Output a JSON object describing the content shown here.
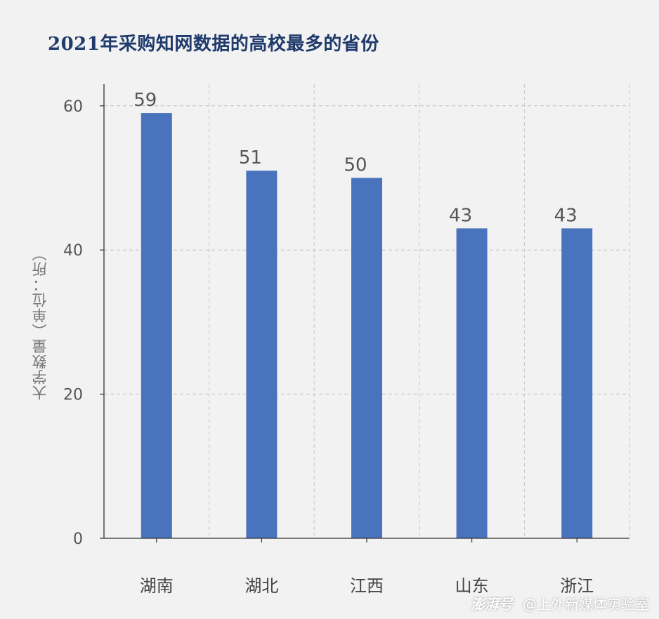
{
  "title": "2021年采购知网数据的高校最多的省份",
  "watermark": {
    "brand": "澎湃号",
    "account": "@上外新媒体实验室"
  },
  "chart_data": {
    "type": "bar",
    "title": "2021年采购知网数据的高校最多的省份",
    "ylabel": "大学数量（单位：所）",
    "xlabel": "",
    "categories": [
      "湖南",
      "湖北",
      "江西",
      "山东",
      "浙江"
    ],
    "values": [
      59,
      51,
      50,
      43,
      43
    ],
    "ylim": [
      0,
      63
    ],
    "yticks": [
      0,
      20,
      40,
      60
    ],
    "grid": true,
    "bar_color": "#4a73bd",
    "data_labels": true
  }
}
